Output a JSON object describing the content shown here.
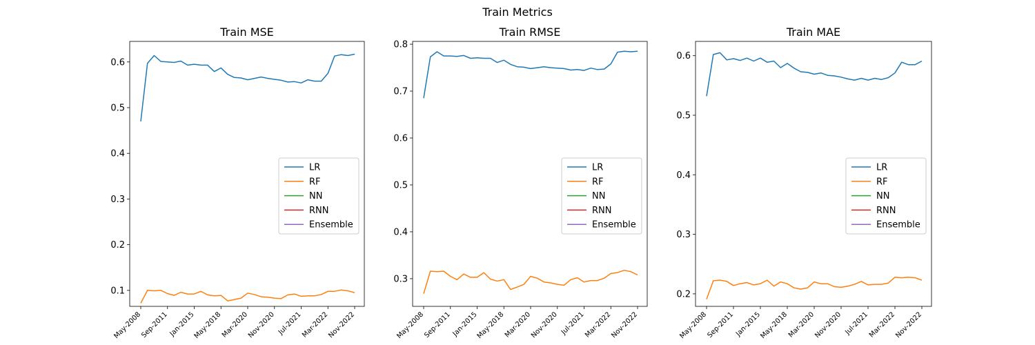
{
  "figure_title": "Train Metrics",
  "chart_data": [
    {
      "type": "line",
      "title": "Train MSE",
      "xlabel": "",
      "ylabel": "",
      "ylim": [
        0.065,
        0.645
      ],
      "yticks": [
        0.1,
        0.2,
        0.3,
        0.4,
        0.5,
        0.6
      ],
      "ytick_labels": [
        "0.1",
        "0.2",
        "0.3",
        "0.4",
        "0.5",
        "0.6"
      ],
      "xtick_labels": [
        "May-2008",
        "Sep-2011",
        "Jan-2015",
        "May-2018",
        "Mar-2020",
        "Nov-2020",
        "Jul-2021",
        "Mar-2022",
        "Nov-2022"
      ],
      "legend": "center right",
      "series": [
        {
          "name": "LR",
          "color": "#1f77b4",
          "values": [
            0.47,
            0.597,
            0.614,
            0.601,
            0.6,
            0.599,
            0.602,
            0.593,
            0.595,
            0.593,
            0.593,
            0.579,
            0.587,
            0.573,
            0.566,
            0.565,
            0.561,
            0.564,
            0.567,
            0.564,
            0.562,
            0.56,
            0.556,
            0.557,
            0.554,
            0.561,
            0.558,
            0.558,
            0.575,
            0.613,
            0.616,
            0.614,
            0.617
          ]
        },
        {
          "name": "RF",
          "color": "#ff7f0e",
          "values": [
            0.072,
            0.1,
            0.099,
            0.1,
            0.093,
            0.089,
            0.096,
            0.092,
            0.092,
            0.098,
            0.09,
            0.088,
            0.089,
            0.077,
            0.08,
            0.083,
            0.094,
            0.091,
            0.086,
            0.085,
            0.083,
            0.082,
            0.09,
            0.092,
            0.087,
            0.088,
            0.088,
            0.091,
            0.098,
            0.098,
            0.101,
            0.099,
            0.095
          ]
        },
        {
          "name": "NN",
          "color": "#2ca02c",
          "values": []
        },
        {
          "name": "RNN",
          "color": "#d62728",
          "values": []
        },
        {
          "name": "Ensemble",
          "color": "#9467bd",
          "values": []
        }
      ]
    },
    {
      "type": "line",
      "title": "Train RMSE",
      "xlabel": "",
      "ylabel": "",
      "ylim": [
        0.241,
        0.806
      ],
      "yticks": [
        0.3,
        0.4,
        0.5,
        0.6,
        0.7,
        0.8
      ],
      "ytick_labels": [
        "0.3",
        "0.4",
        "0.5",
        "0.6",
        "0.7",
        "0.8"
      ],
      "xtick_labels": [
        "May-2008",
        "Sep-2011",
        "Jan-2015",
        "May-2018",
        "Mar-2020",
        "Nov-2020",
        "Jul-2021",
        "Mar-2022",
        "Nov-2022"
      ],
      "legend": "center right",
      "series": [
        {
          "name": "LR",
          "color": "#1f77b4",
          "values": [
            0.685,
            0.773,
            0.784,
            0.775,
            0.775,
            0.774,
            0.776,
            0.77,
            0.771,
            0.77,
            0.77,
            0.761,
            0.766,
            0.757,
            0.752,
            0.751,
            0.748,
            0.75,
            0.752,
            0.75,
            0.749,
            0.748,
            0.745,
            0.746,
            0.744,
            0.749,
            0.746,
            0.747,
            0.758,
            0.783,
            0.785,
            0.784,
            0.785
          ]
        },
        {
          "name": "RF",
          "color": "#ff7f0e",
          "values": [
            0.268,
            0.316,
            0.315,
            0.316,
            0.305,
            0.298,
            0.31,
            0.303,
            0.303,
            0.313,
            0.299,
            0.295,
            0.298,
            0.277,
            0.282,
            0.288,
            0.305,
            0.301,
            0.293,
            0.291,
            0.288,
            0.286,
            0.298,
            0.302,
            0.293,
            0.296,
            0.296,
            0.301,
            0.311,
            0.313,
            0.318,
            0.315,
            0.308
          ]
        },
        {
          "name": "NN",
          "color": "#2ca02c",
          "values": []
        },
        {
          "name": "RNN",
          "color": "#d62728",
          "values": []
        },
        {
          "name": "Ensemble",
          "color": "#9467bd",
          "values": []
        }
      ]
    },
    {
      "type": "line",
      "title": "Train MAE",
      "xlabel": "",
      "ylabel": "",
      "ylim": [
        0.179,
        0.624
      ],
      "yticks": [
        0.2,
        0.3,
        0.4,
        0.5,
        0.6
      ],
      "ytick_labels": [
        "0.2",
        "0.3",
        "0.4",
        "0.5",
        "0.6"
      ],
      "xtick_labels": [
        "May-2008",
        "Sep-2011",
        "Jan-2015",
        "May-2018",
        "Mar-2020",
        "Nov-2020",
        "Jul-2021",
        "Mar-2022",
        "Nov-2022"
      ],
      "legend": "center right",
      "series": [
        {
          "name": "LR",
          "color": "#1f77b4",
          "values": [
            0.532,
            0.602,
            0.605,
            0.593,
            0.595,
            0.592,
            0.596,
            0.591,
            0.596,
            0.589,
            0.591,
            0.58,
            0.587,
            0.579,
            0.573,
            0.572,
            0.569,
            0.571,
            0.567,
            0.566,
            0.564,
            0.561,
            0.559,
            0.562,
            0.559,
            0.562,
            0.56,
            0.563,
            0.571,
            0.589,
            0.585,
            0.585,
            0.591
          ]
        },
        {
          "name": "RF",
          "color": "#ff7f0e",
          "values": [
            0.191,
            0.222,
            0.223,
            0.221,
            0.214,
            0.217,
            0.219,
            0.215,
            0.217,
            0.223,
            0.213,
            0.22,
            0.217,
            0.21,
            0.208,
            0.21,
            0.22,
            0.217,
            0.217,
            0.212,
            0.211,
            0.213,
            0.216,
            0.221,
            0.215,
            0.216,
            0.216,
            0.218,
            0.228,
            0.227,
            0.228,
            0.227,
            0.223
          ]
        },
        {
          "name": "NN",
          "color": "#2ca02c",
          "values": []
        },
        {
          "name": "RNN",
          "color": "#d62728",
          "values": []
        },
        {
          "name": "Ensemble",
          "color": "#9467bd",
          "values": []
        }
      ]
    }
  ]
}
